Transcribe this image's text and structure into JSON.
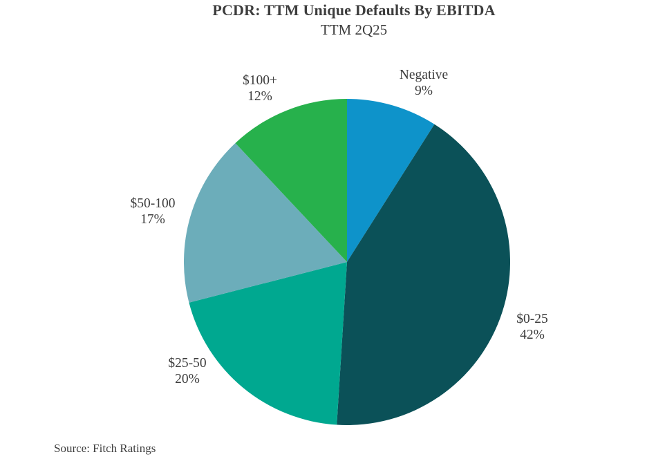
{
  "header": {
    "title": "PCDR: TTM Unique Defaults By EBITDA",
    "subtitle": "TTM 2Q25"
  },
  "footer": {
    "source": "Source: Fitch Ratings"
  },
  "chart_data": {
    "type": "pie",
    "title": "PCDR: TTM Unique Defaults By EBITDA",
    "subtitle": "TTM 2Q25",
    "source": "Source: Fitch Ratings",
    "start_angle_deg": 0,
    "direction": "clockwise",
    "legend_position": "none",
    "label_style": "outside, two lines (category above percent)",
    "background_color": "#ffffff",
    "text_color": "#3d3d3d",
    "slices": [
      {
        "label": "Negative",
        "value_pct": 9,
        "color": "#0e93ca"
      },
      {
        "label": "$0-25",
        "value_pct": 42,
        "color": "#0b5158"
      },
      {
        "label": "$25-50",
        "value_pct": 20,
        "color": "#00a890"
      },
      {
        "label": "$50-100",
        "value_pct": 17,
        "color": "#6cadba"
      },
      {
        "label": "$100+",
        "value_pct": 12,
        "color": "#27b14c"
      }
    ]
  }
}
